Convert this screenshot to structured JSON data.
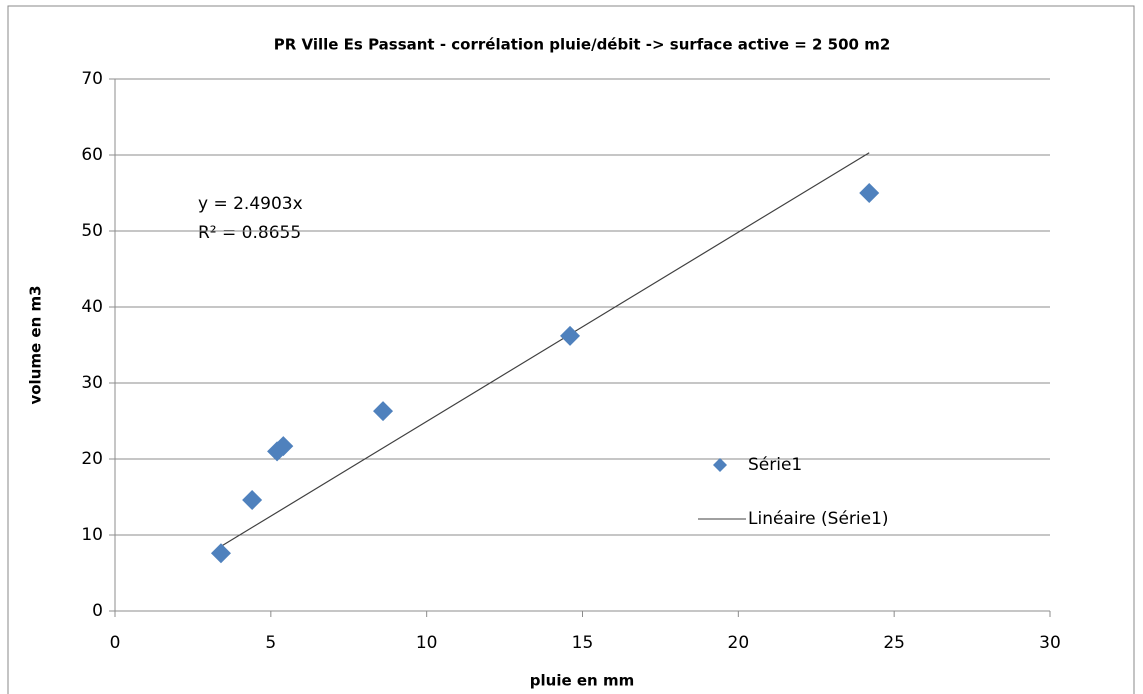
{
  "chart_data": {
    "type": "scatter",
    "title": "PR Ville Es Passant - corrélation pluie/débit -> surface active = 2  500 m2",
    "x_label": "pluie en mm",
    "y_label": "volume en m3",
    "series": [
      {
        "name": "Série1",
        "color": "#4f81bd",
        "x": [
          3.4,
          4.4,
          5.2,
          5.4,
          8.6,
          14.6,
          24.2
        ],
        "values": [
          7.6,
          14.6,
          21.0,
          21.7,
          26.3,
          36.2,
          55.0
        ]
      }
    ],
    "trendline": {
      "name": "Linéaire (Série1)",
      "color": "#404040",
      "x": [
        3.4,
        24.2
      ],
      "values": [
        8.5,
        60.3
      ]
    },
    "annotations": [
      "y = 2.4903x",
      "R² = 0.8655"
    ],
    "xlim": [
      0,
      30
    ],
    "xticks": [
      0,
      5,
      10,
      15,
      20,
      25,
      30
    ],
    "ylim": [
      0,
      70
    ],
    "yticks": [
      0,
      10,
      20,
      30,
      40,
      50,
      60,
      70
    ],
    "grid": true,
    "legend": "right"
  }
}
